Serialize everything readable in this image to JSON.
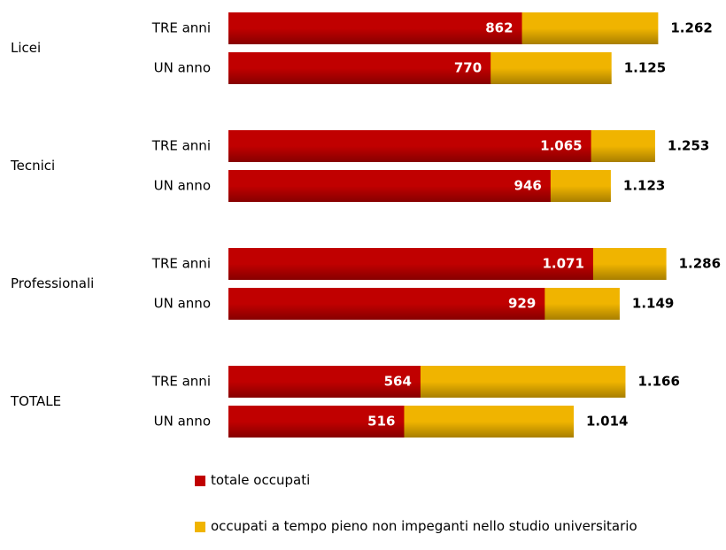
{
  "chart_data": {
    "type": "bar",
    "orientation": "horizontal",
    "groups": [
      "Licei",
      "Tecnici",
      "Professionali",
      "TOTALE"
    ],
    "categories": [
      "TRE anni",
      "UN anno",
      "TRE anni",
      "UN anno",
      "TRE anni",
      "UN anno",
      "TRE anni",
      "UN anno"
    ],
    "series": [
      {
        "name": "totale occupati",
        "color": "#c00000",
        "values": [
          862,
          770,
          1065,
          946,
          1071,
          929,
          564,
          516
        ],
        "value_labels": [
          "862",
          "770",
          "1.065",
          "946",
          "1.071",
          "929",
          "564",
          "516"
        ]
      },
      {
        "name": "occupati a tempo pieno non impeganti nello studio universitario",
        "color": "#f0b400",
        "values": [
          1262,
          1125,
          1253,
          1123,
          1286,
          1149,
          1166,
          1014
        ],
        "value_labels": [
          "1.262",
          "1.125",
          "1.253",
          "1.123",
          "1.286",
          "1.149",
          "1.166",
          "1.014"
        ]
      }
    ],
    "xlim": [
      0,
      1300
    ]
  }
}
